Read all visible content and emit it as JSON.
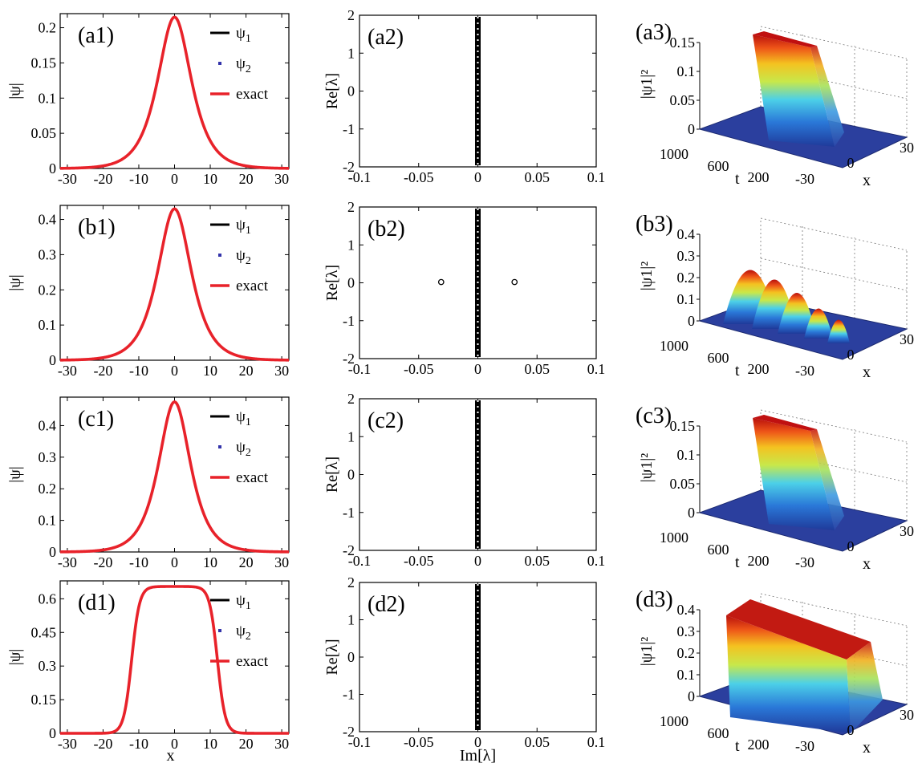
{
  "chart_data": {
    "type": "figure-grid",
    "rows": [
      {
        "profile": {
          "type": "line",
          "panel_label": "(a1)",
          "ylabel": "|ψ|",
          "xlabel": "",
          "xlim": [
            -32,
            32
          ],
          "ylim": [
            0,
            0.22
          ],
          "xticks": [
            "-30",
            "-20",
            "-10",
            "0",
            "10",
            "20",
            "30"
          ],
          "yticks": [
            "0",
            "0.05",
            "0.1",
            "0.15",
            "0.2"
          ],
          "legend": [
            "ψ1",
            "ψ2",
            "exact"
          ],
          "legend_placement": "right",
          "colors": {
            "psi1": "#000000",
            "psi2": "#3333aa",
            "exact": "#e8222a"
          },
          "amplitude": 0.215,
          "width": 4.2,
          "plateau_halfwidth": 0
        },
        "spectrum": {
          "type": "scatter",
          "panel_label": "(a2)",
          "ylabel": "Re[λ]",
          "xlabel": "",
          "xlim": [
            -0.1,
            0.1
          ],
          "ylim": [
            -2,
            2
          ],
          "xticks": [
            "-0.1",
            "-0.05",
            "0",
            "0.05",
            "0.1"
          ],
          "yticks": [
            "2",
            "1",
            "0",
            "-1",
            "-2"
          ],
          "off_axis_points": []
        },
        "surface": {
          "type": "surface3d",
          "panel_label": "(a3)",
          "zlabel": "|ψ1|²",
          "zticks": [
            "0.15",
            "0.1",
            "0.05",
            "0"
          ],
          "t_ticks": [
            "1000",
            "600",
            "200"
          ],
          "x_ticks": [
            "-30",
            "0",
            "30"
          ],
          "t_label": "t",
          "x_label": "x",
          "shape": "stable-ridge"
        }
      },
      {
        "profile": {
          "type": "line",
          "panel_label": "(b1)",
          "ylabel": "|ψ|",
          "xlabel": "",
          "xlim": [
            -32,
            32
          ],
          "ylim": [
            0,
            0.44
          ],
          "xticks": [
            "-30",
            "-20",
            "-10",
            "0",
            "10",
            "20",
            "30"
          ],
          "yticks": [
            "0",
            "0.1",
            "0.2",
            "0.3",
            "0.4"
          ],
          "legend": [
            "ψ1",
            "ψ2",
            "exact"
          ],
          "legend_placement": "right",
          "colors": {
            "psi1": "#000000",
            "psi2": "#3333aa",
            "exact": "#e8222a"
          },
          "amplitude": 0.43,
          "width": 4.2,
          "plateau_halfwidth": 0
        },
        "spectrum": {
          "type": "scatter",
          "panel_label": "(b2)",
          "ylabel": "Re[λ]",
          "xlabel": "",
          "xlim": [
            -0.1,
            0.1
          ],
          "ylim": [
            -2,
            2
          ],
          "xticks": [
            "-0.1",
            "-0.05",
            "0",
            "0.05",
            "0.1"
          ],
          "yticks": [
            "2",
            "1",
            "0",
            "-1",
            "-2"
          ],
          "off_axis_points": [
            {
              "x": -0.031,
              "y": 0.02
            },
            {
              "x": 0.031,
              "y": 0.02
            }
          ]
        },
        "surface": {
          "type": "surface3d",
          "panel_label": "(b3)",
          "zlabel": "|ψ1|²",
          "zticks": [
            "0.4",
            "0.3",
            "0.2",
            "0.1",
            "0"
          ],
          "t_ticks": [
            "1000",
            "600",
            "200"
          ],
          "x_ticks": [
            "-30",
            "0",
            "30"
          ],
          "t_label": "t",
          "x_label": "x",
          "shape": "unstable-peaks"
        }
      },
      {
        "profile": {
          "type": "line",
          "panel_label": "(c1)",
          "ylabel": "|ψ|",
          "xlabel": "",
          "xlim": [
            -32,
            32
          ],
          "ylim": [
            0,
            0.49
          ],
          "xticks": [
            "-30",
            "-20",
            "-10",
            "0",
            "10",
            "20",
            "30"
          ],
          "yticks": [
            "0",
            "0.1",
            "0.2",
            "0.3",
            "0.4"
          ],
          "legend": [
            "ψ1",
            "ψ2",
            "exact"
          ],
          "legend_placement": "right",
          "colors": {
            "psi1": "#000000",
            "psi2": "#3333aa",
            "exact": "#e8222a"
          },
          "amplitude": 0.475,
          "width": 4.0,
          "plateau_halfwidth": 0
        },
        "spectrum": {
          "type": "scatter",
          "panel_label": "(c2)",
          "ylabel": "Re[λ]",
          "xlabel": "",
          "xlim": [
            -0.1,
            0.1
          ],
          "ylim": [
            -2,
            2
          ],
          "xticks": [
            "-0.1",
            "-0.05",
            "0",
            "0.05",
            "0.1"
          ],
          "yticks": [
            "2",
            "1",
            "0",
            "-1",
            "-2"
          ],
          "off_axis_points": []
        },
        "surface": {
          "type": "surface3d",
          "panel_label": "(c3)",
          "zlabel": "|ψ1|²",
          "zticks": [
            "0.15",
            "0.1",
            "0.05",
            "0"
          ],
          "t_ticks": [
            "1000",
            "600",
            "200"
          ],
          "x_ticks": [
            "-30",
            "0",
            "30"
          ],
          "t_label": "t",
          "x_label": "x",
          "shape": "stable-ridge"
        }
      },
      {
        "profile": {
          "type": "line",
          "panel_label": "(d1)",
          "ylabel": "|ψ|",
          "xlabel": "x",
          "xlim": [
            -32,
            32
          ],
          "ylim": [
            0,
            0.68
          ],
          "xticks": [
            "-30",
            "-20",
            "-10",
            "0",
            "10",
            "20",
            "30"
          ],
          "yticks": [
            "0",
            "0.15",
            "0.3",
            "0.45",
            "0.6"
          ],
          "legend": [
            "ψ1",
            "ψ2",
            "exact"
          ],
          "legend_placement": "right",
          "colors": {
            "psi1": "#000000",
            "psi2": "#3333aa",
            "exact": "#e8222a"
          },
          "amplitude": 0.655,
          "width": 2.2,
          "plateau_halfwidth": 12
        },
        "spectrum": {
          "type": "scatter",
          "panel_label": "(d2)",
          "ylabel": "Re[λ]",
          "xlabel": "Im[λ]",
          "xlim": [
            -0.1,
            0.1
          ],
          "ylim": [
            -2,
            2
          ],
          "xticks": [
            "-0.1",
            "-0.05",
            "0",
            "0.05",
            "0.1"
          ],
          "yticks": [
            "2",
            "1",
            "0",
            "-1",
            "-2"
          ],
          "off_axis_points": []
        },
        "surface": {
          "type": "surface3d",
          "panel_label": "(d3)",
          "zlabel": "|ψ1|²",
          "zticks": [
            "0.4",
            "0.3",
            "0.2",
            "0.1",
            "0"
          ],
          "t_ticks": [
            "1000",
            "600",
            "200"
          ],
          "x_ticks": [
            "-30",
            "0",
            "30"
          ],
          "t_label": "t",
          "x_label": "x",
          "shape": "stable-plateau"
        }
      }
    ]
  }
}
